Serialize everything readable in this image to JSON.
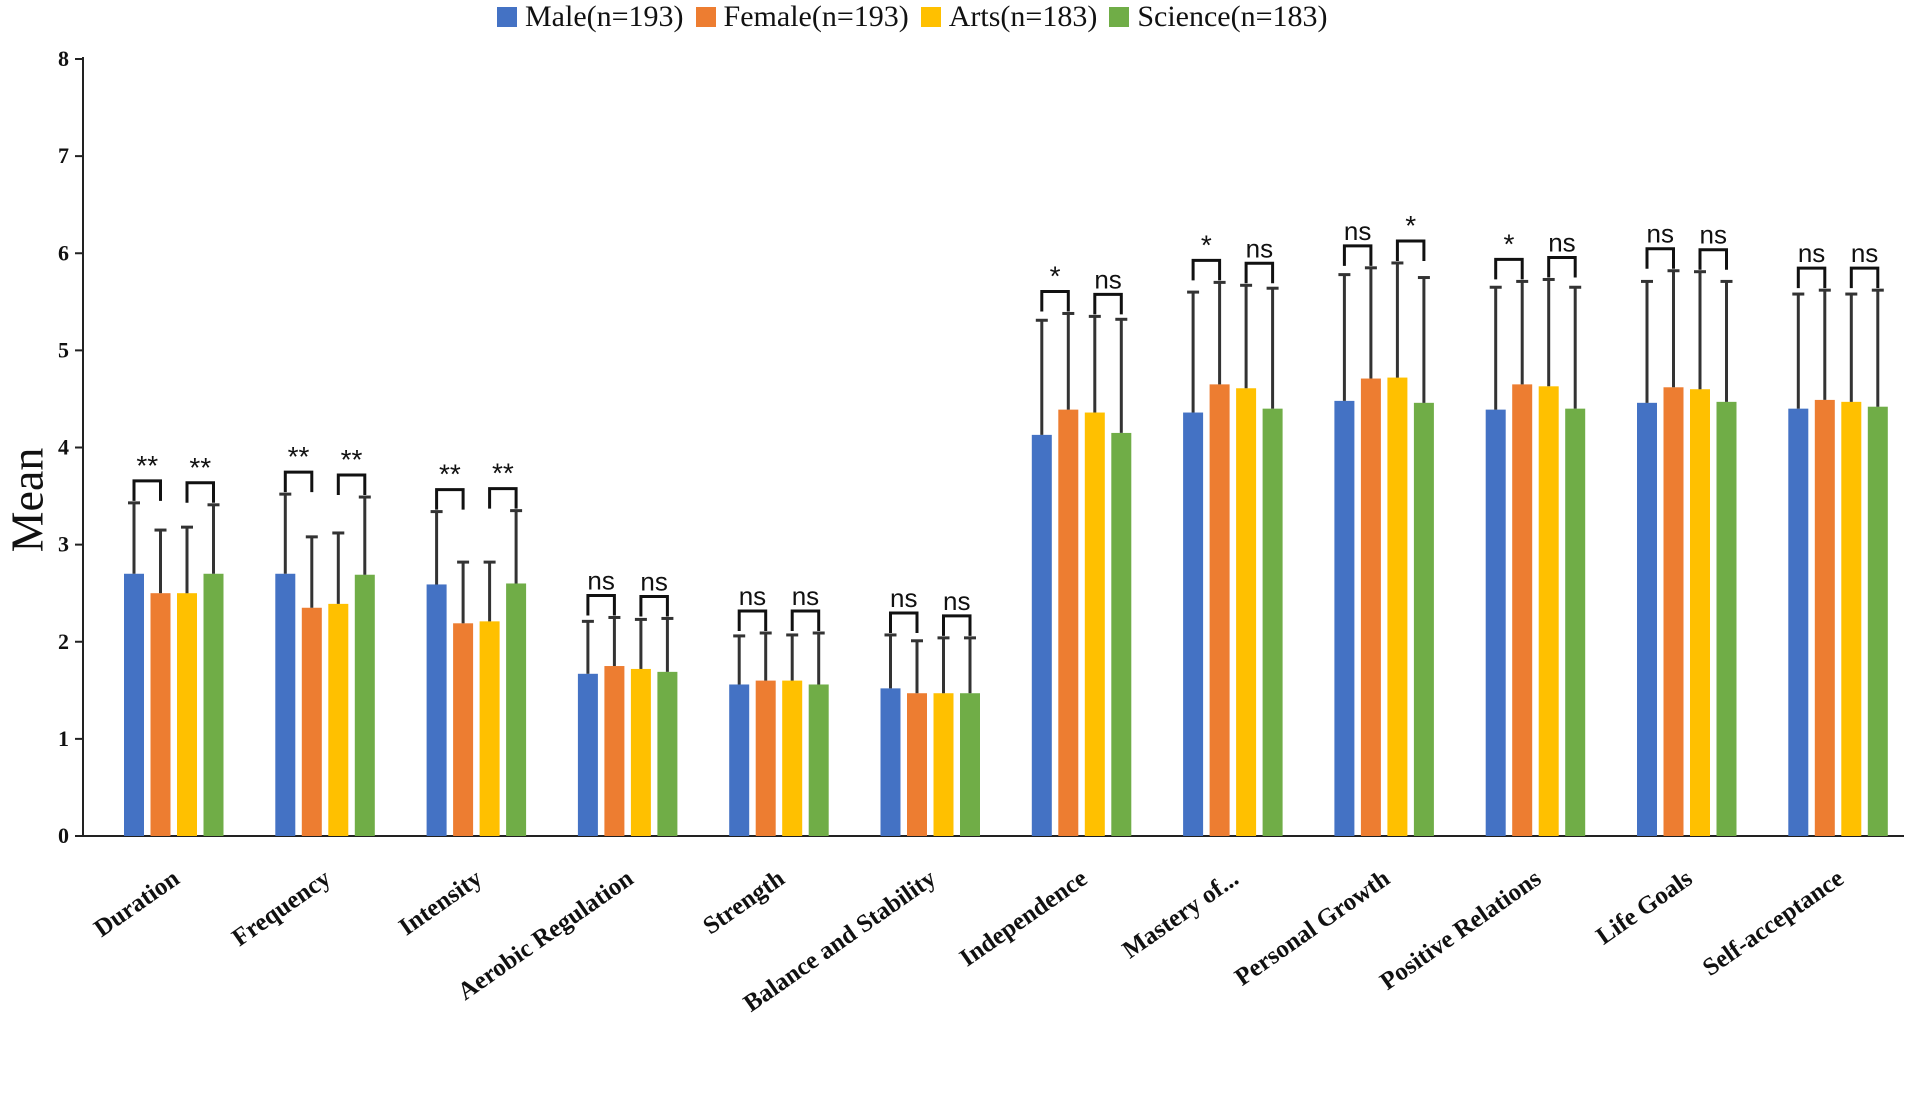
{
  "chart_data": {
    "type": "bar",
    "title": "",
    "xlabel": "",
    "ylabel": "Mean",
    "ylim": [
      0,
      8
    ],
    "yticks": [
      "0",
      "1",
      "2",
      "3",
      "4",
      "5",
      "6",
      "7",
      "8"
    ],
    "legend_position": "top",
    "grid": false,
    "categories": [
      "Duration",
      "Frequency",
      "Intensity",
      "Aerobic Regulation",
      "Strength",
      "Balance and Stability",
      "Independence",
      "Mastery of...",
      "Personal Growth",
      "Positive Relations",
      "Life Goals",
      "Self-acceptance"
    ],
    "series": [
      {
        "name": "Male(n=193)",
        "color": "#4472C4",
        "values": [
          2.7,
          2.7,
          2.59,
          1.67,
          1.56,
          1.52,
          4.13,
          4.36,
          4.48,
          4.39,
          4.46,
          4.4
        ],
        "errors": [
          0.73,
          0.82,
          0.75,
          0.54,
          0.5,
          0.55,
          1.18,
          1.24,
          1.3,
          1.26,
          1.25,
          1.18
        ]
      },
      {
        "name": "Female(n=193)",
        "color": "#ED7D31",
        "values": [
          2.5,
          2.35,
          2.19,
          1.75,
          1.6,
          1.47,
          4.39,
          4.65,
          4.71,
          4.65,
          4.62,
          4.49
        ],
        "errors": [
          0.65,
          0.73,
          0.63,
          0.5,
          0.49,
          0.54,
          0.99,
          1.05,
          1.14,
          1.06,
          1.2,
          1.13
        ]
      },
      {
        "name": "Arts(n=183)",
        "color": "#FFC000",
        "values": [
          2.5,
          2.39,
          2.21,
          1.72,
          1.6,
          1.47,
          4.36,
          4.61,
          4.72,
          4.63,
          4.6,
          4.47
        ],
        "errors": [
          0.68,
          0.73,
          0.61,
          0.51,
          0.47,
          0.57,
          0.99,
          1.06,
          1.18,
          1.1,
          1.21,
          1.11
        ]
      },
      {
        "name": "Science(n=183)",
        "color": "#70AD47",
        "values": [
          2.7,
          2.69,
          2.6,
          1.69,
          1.56,
          1.47,
          4.15,
          4.4,
          4.46,
          4.4,
          4.47,
          4.42
        ],
        "errors": [
          0.71,
          0.8,
          0.75,
          0.55,
          0.53,
          0.57,
          1.17,
          1.24,
          1.29,
          1.25,
          1.24,
          1.2
        ]
      }
    ],
    "significance": [
      [
        "**",
        "**"
      ],
      [
        "**",
        "**"
      ],
      [
        "**",
        "**"
      ],
      [
        "ns",
        "ns"
      ],
      [
        "ns",
        "ns"
      ],
      [
        "ns",
        "ns"
      ],
      [
        "*",
        "ns"
      ],
      [
        "*",
        "ns"
      ],
      [
        "ns",
        "*"
      ],
      [
        "*",
        "ns"
      ],
      [
        "ns",
        "ns"
      ],
      [
        "ns",
        "ns"
      ]
    ]
  }
}
